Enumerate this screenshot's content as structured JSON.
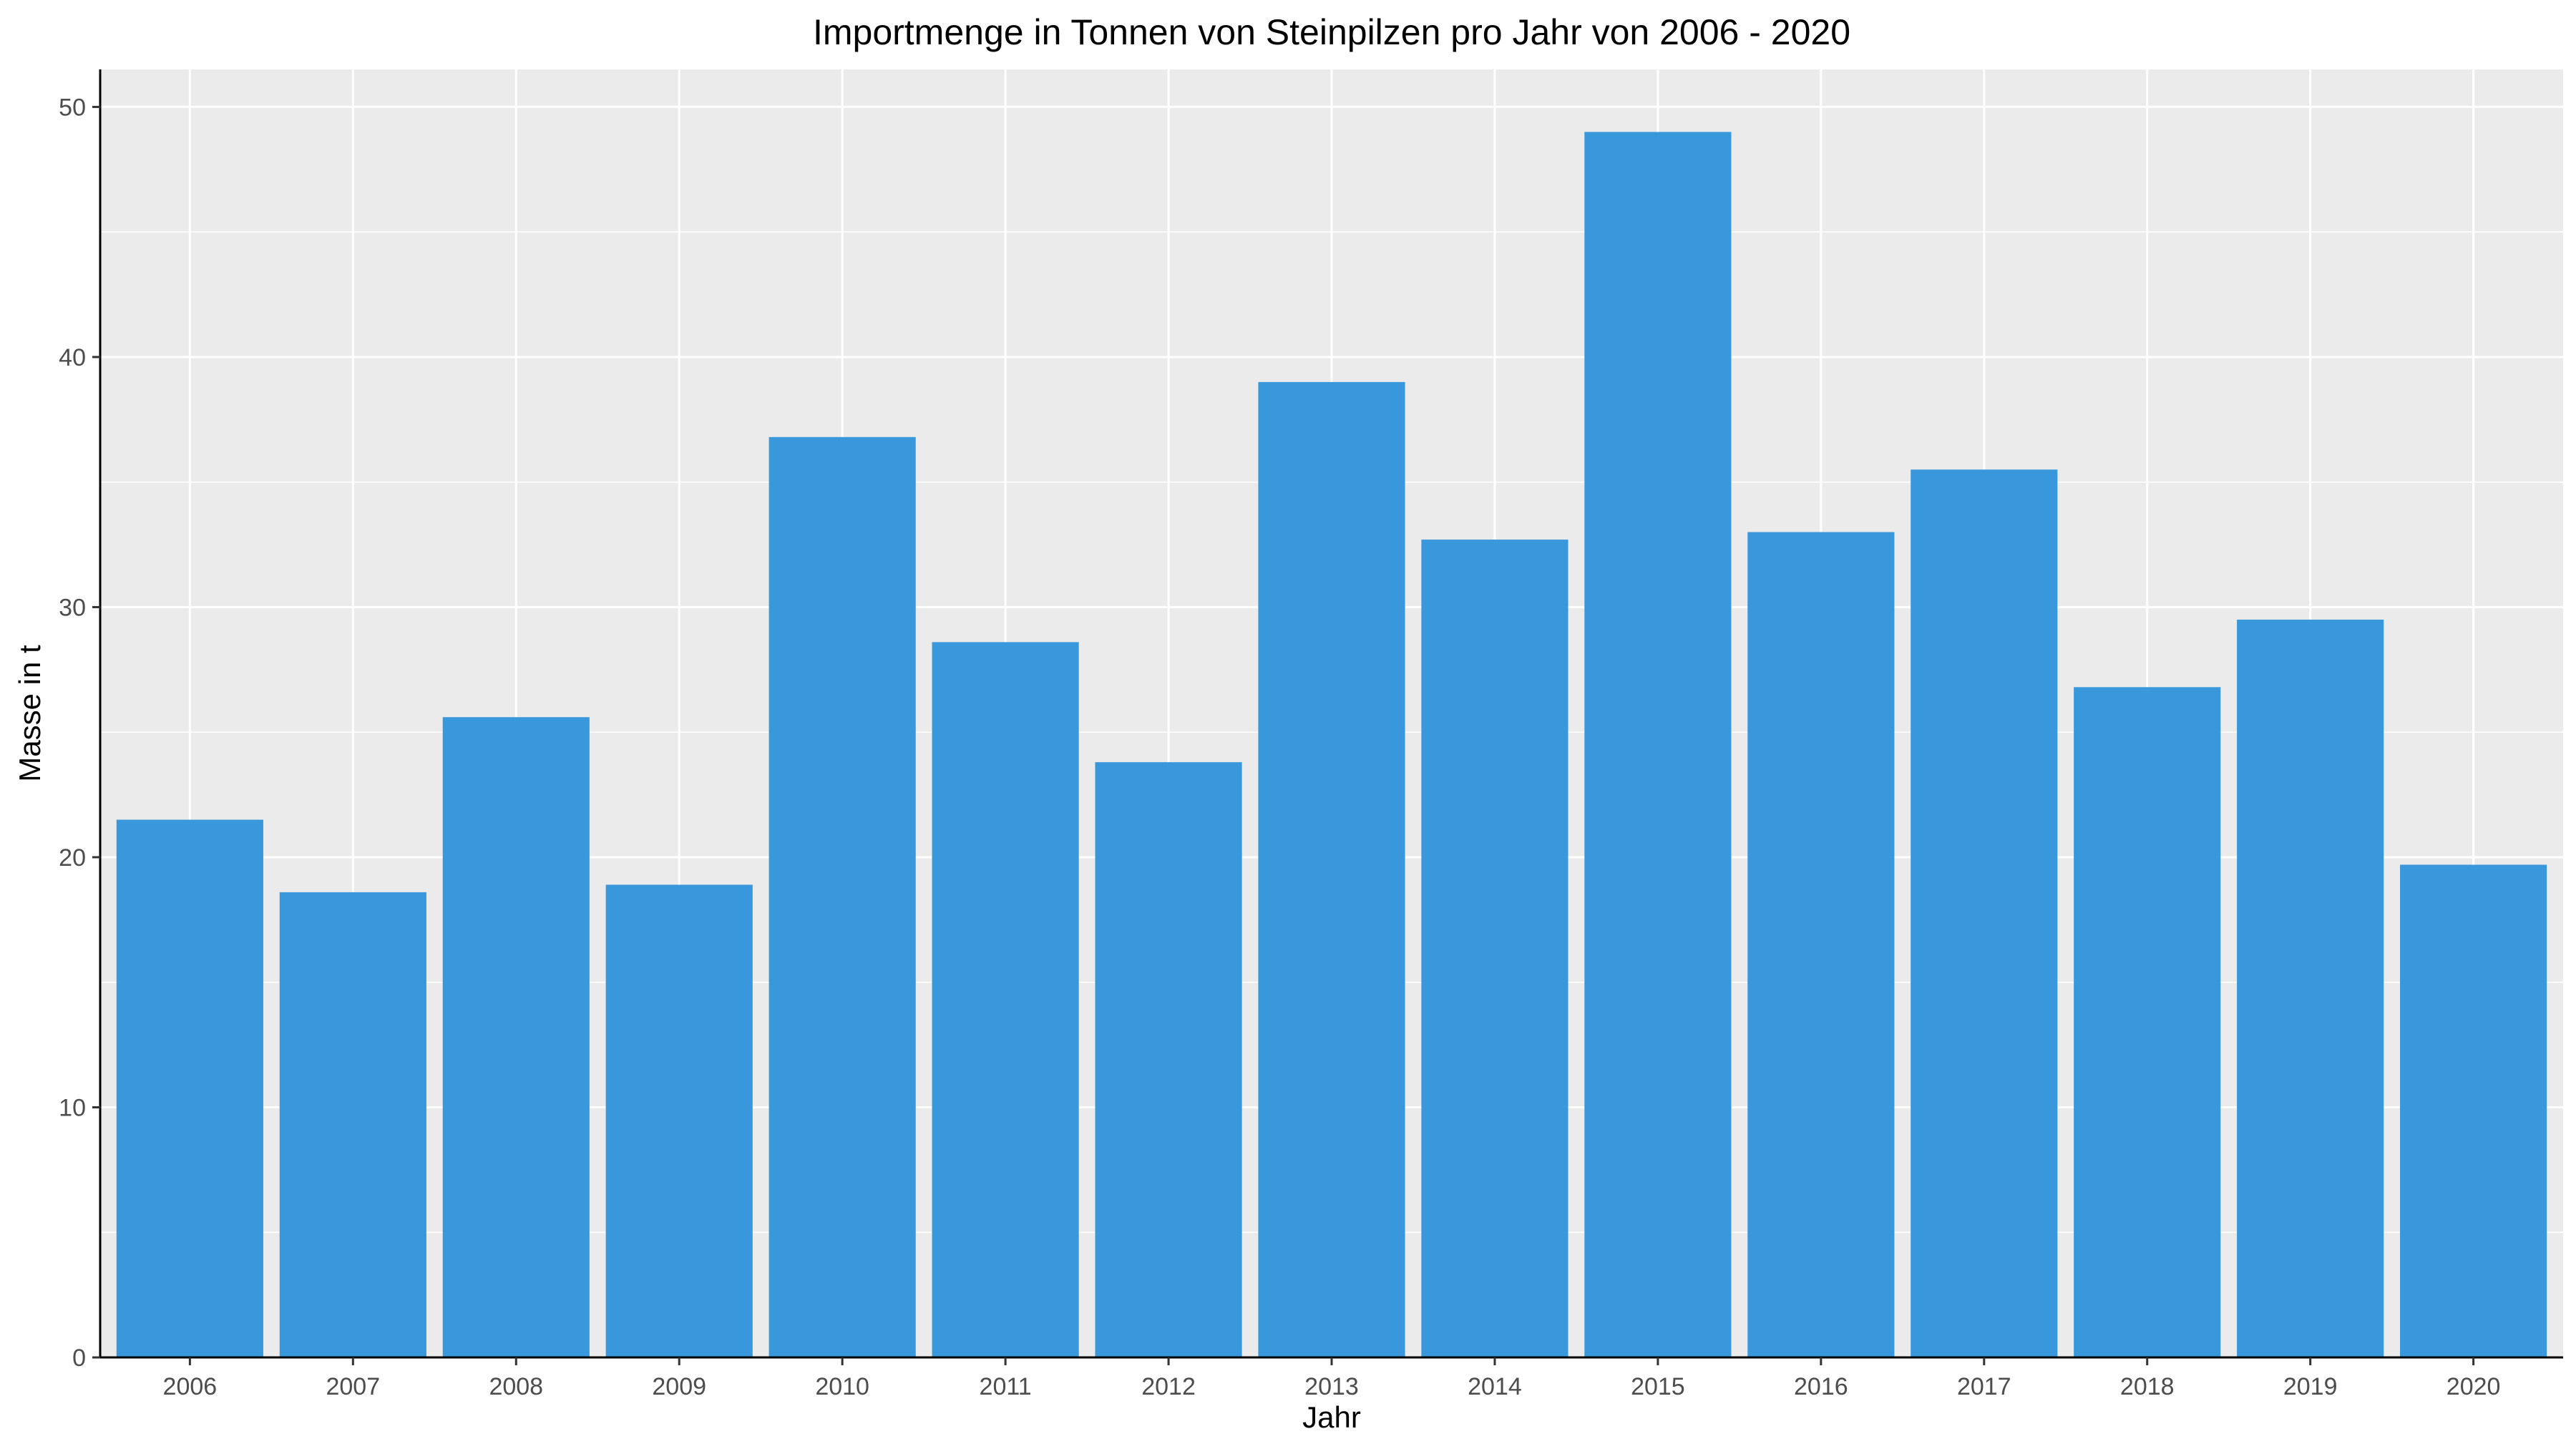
{
  "chart_data": {
    "type": "bar",
    "title": "Importmenge in Tonnen von Steinpilzen pro Jahr von 2006 - 2020",
    "xlabel": "Jahr",
    "ylabel": "Masse in t",
    "categories": [
      "2006",
      "2007",
      "2008",
      "2009",
      "2010",
      "2011",
      "2012",
      "2013",
      "2014",
      "2015",
      "2016",
      "2017",
      "2018",
      "2019",
      "2020"
    ],
    "values": [
      21.5,
      18.6,
      25.6,
      18.9,
      36.8,
      28.6,
      23.8,
      39.0,
      32.7,
      49.0,
      33.0,
      35.5,
      26.8,
      29.5,
      19.7
    ],
    "ylim": [
      0,
      51.5
    ],
    "yticks": [
      "0",
      "10",
      "20",
      "30",
      "40",
      "50"
    ],
    "grid": true,
    "legend": "none",
    "bar_color": "#3898DB",
    "panel_color": "#EBEBEB",
    "grid_color": "#FFFFFF"
  }
}
